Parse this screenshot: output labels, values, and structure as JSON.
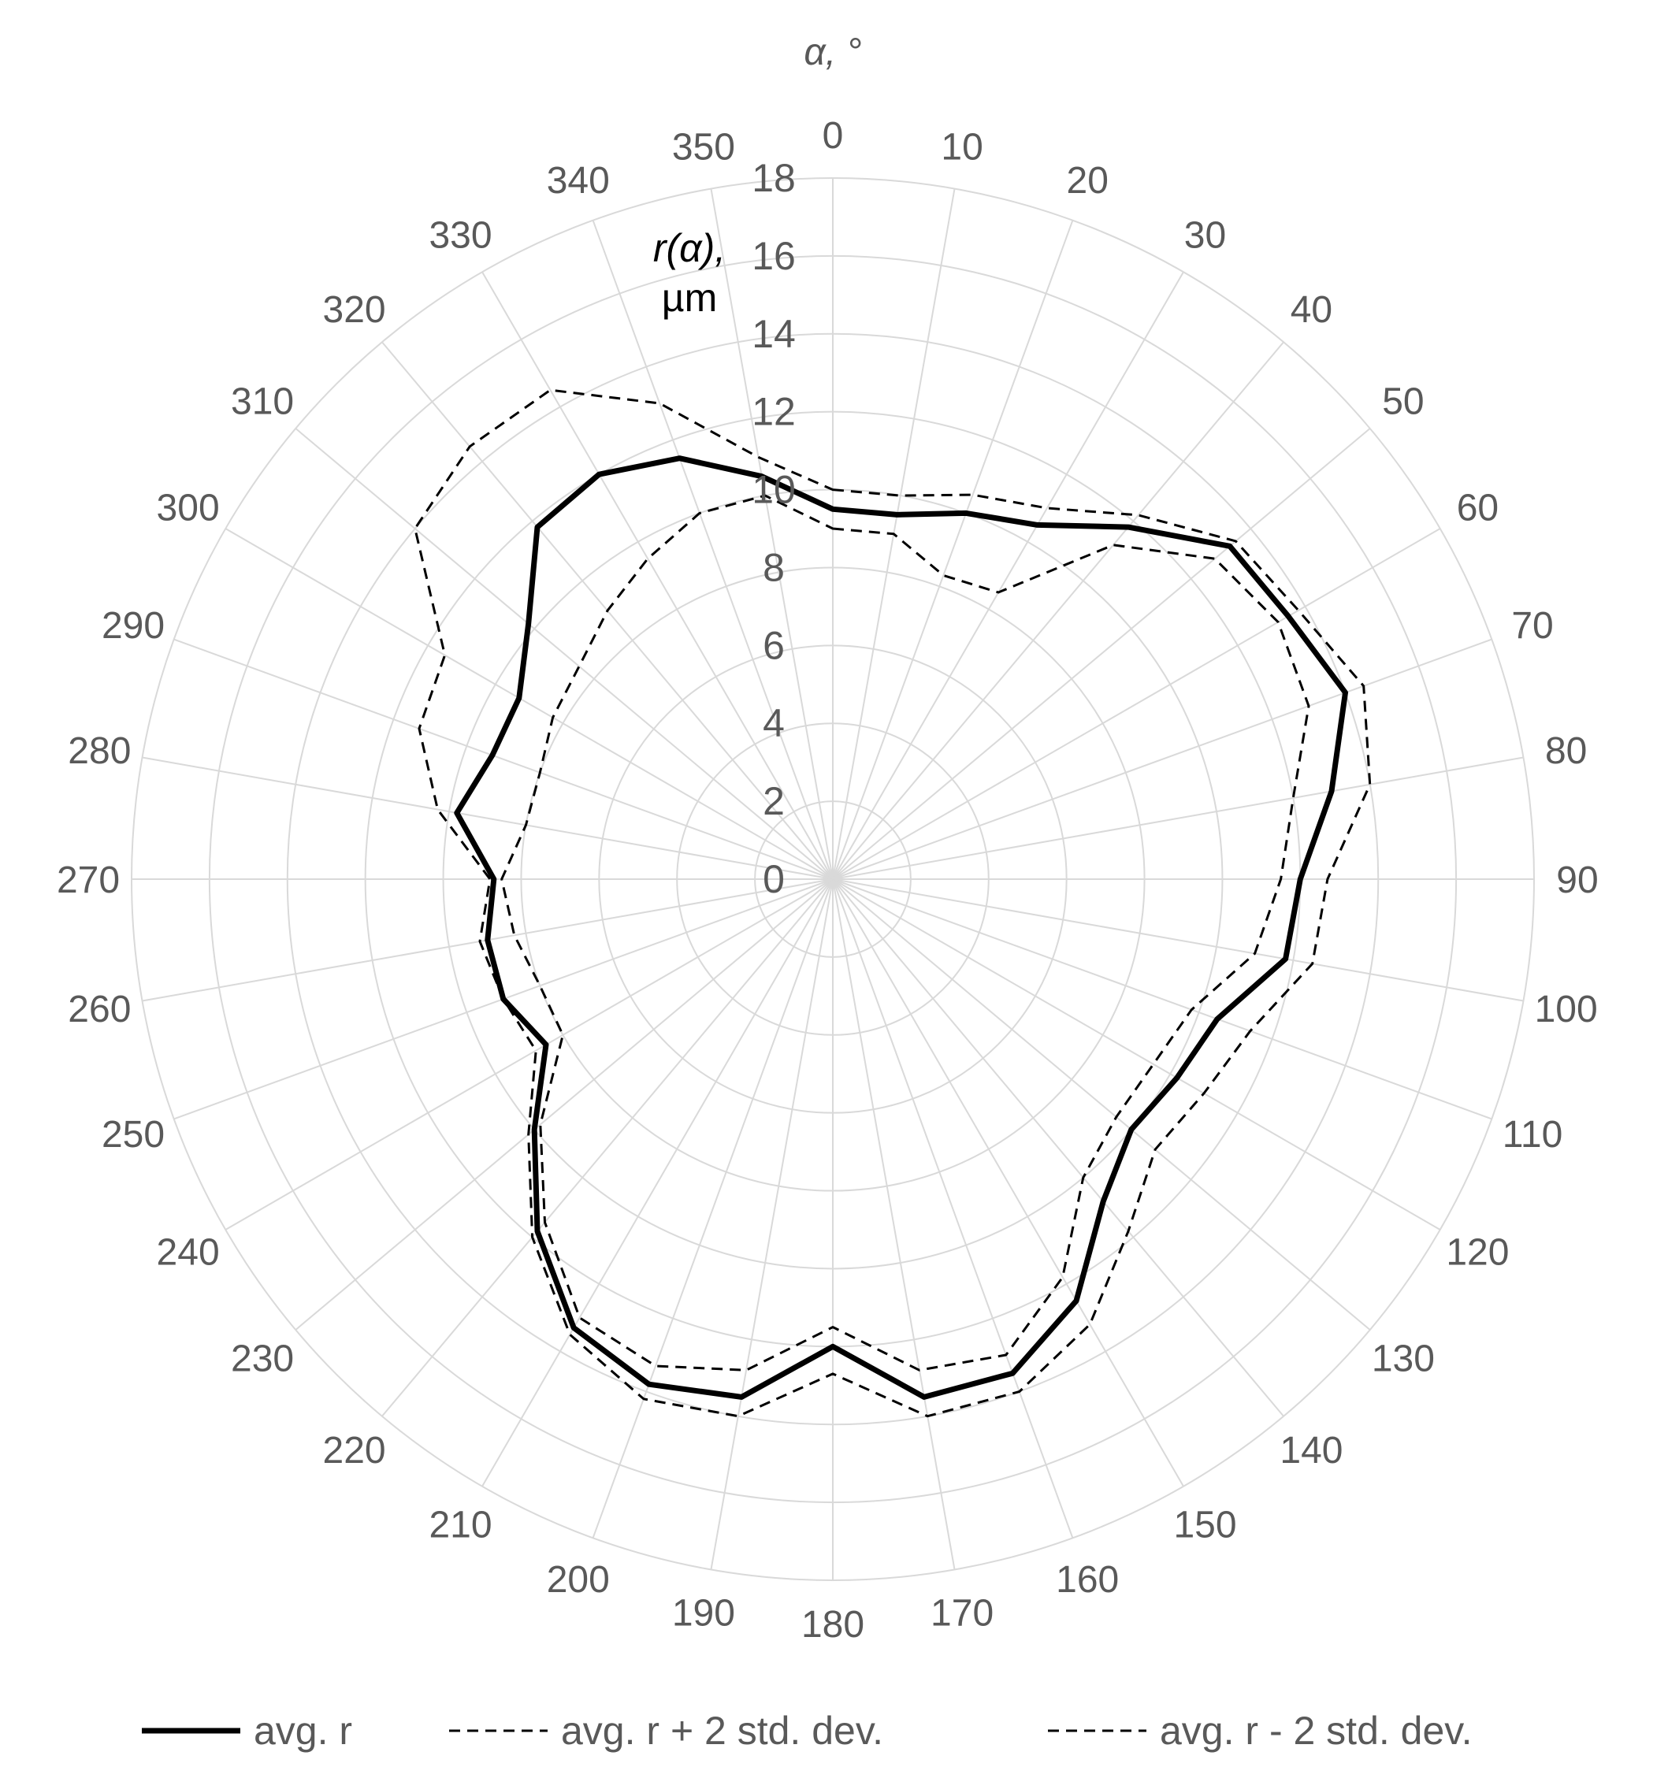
{
  "chart_data": {
    "type": "radar",
    "angle_axis_title": "α, °",
    "radial_axis_title_line1": "r(α),",
    "radial_axis_title_line2": "µm",
    "angle_ticks": [
      "0",
      "10",
      "20",
      "30",
      "40",
      "50",
      "60",
      "70",
      "80",
      "90",
      "100",
      "110",
      "120",
      "130",
      "140",
      "150",
      "160",
      "170",
      "180",
      "190",
      "200",
      "210",
      "220",
      "230",
      "240",
      "250",
      "260",
      "270",
      "280",
      "290",
      "300",
      "310",
      "320",
      "330",
      "340",
      "350"
    ],
    "radial_ticks": [
      "0",
      "2",
      "4",
      "6",
      "8",
      "10",
      "12",
      "14",
      "16",
      "18"
    ],
    "rlim": [
      0,
      18
    ],
    "angles_deg": [
      0,
      10,
      20,
      30,
      40,
      50,
      60,
      70,
      80,
      90,
      100,
      110,
      120,
      130,
      140,
      150,
      160,
      170,
      180,
      190,
      200,
      210,
      220,
      230,
      240,
      250,
      260,
      270,
      280,
      290,
      300,
      310,
      320,
      330,
      340,
      350
    ],
    "grid": true,
    "legend_position": "bottom",
    "series": [
      {
        "name": "avg. r",
        "style": "solid",
        "color": "#000000",
        "values": [
          9.5,
          9.5,
          10.0,
          10.5,
          11.8,
          13.3,
          13.5,
          14.0,
          13.0,
          12.0,
          11.8,
          10.5,
          10.2,
          10.0,
          10.8,
          12.5,
          13.5,
          13.5,
          12.0,
          13.5,
          13.8,
          13.3,
          11.8,
          10.0,
          8.5,
          9.0,
          9.0,
          8.7,
          9.8,
          9.3,
          9.3,
          10.2,
          11.8,
          12.0,
          11.5,
          10.5
        ]
      },
      {
        "name": "avg. r + 2 std. dev.",
        "style": "dashed",
        "color": "#000000",
        "values": [
          10.0,
          10.0,
          10.5,
          11.0,
          12.2,
          13.5,
          13.8,
          14.5,
          14.0,
          12.7,
          12.5,
          11.4,
          11.0,
          10.8,
          11.8,
          13.2,
          14.0,
          14.0,
          12.7,
          14.0,
          14.2,
          13.5,
          12.0,
          10.2,
          8.8,
          9.0,
          9.2,
          8.8,
          10.3,
          11.3,
          11.5,
          14.0,
          14.5,
          14.5,
          13.0,
          11.0
        ]
      },
      {
        "name": "avg. r - 2 std. dev.",
        "style": "dashed",
        "color": "#000000",
        "values": [
          9.0,
          9.0,
          8.3,
          8.5,
          11.2,
          12.8,
          13.2,
          13.0,
          12.0,
          11.5,
          11.0,
          9.8,
          9.5,
          9.5,
          10.0,
          11.8,
          13.0,
          12.8,
          11.5,
          12.8,
          13.3,
          13.0,
          11.5,
          9.8,
          8.0,
          8.0,
          8.3,
          8.5,
          8.0,
          8.0,
          8.3,
          8.5,
          9.0,
          9.5,
          10.0,
          10.0
        ]
      }
    ]
  }
}
